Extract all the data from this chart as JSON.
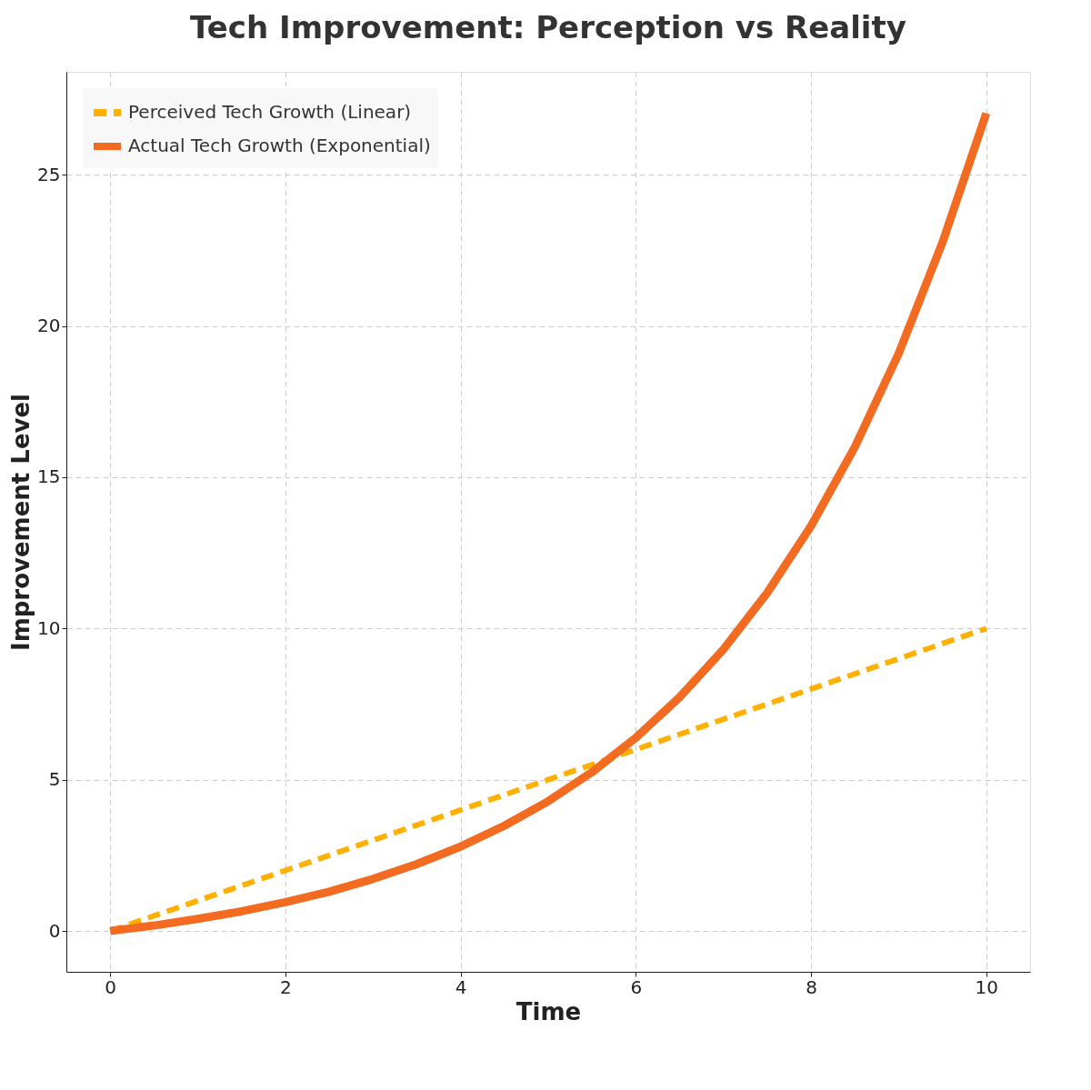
{
  "chart_data": {
    "type": "line",
    "title": "Tech Improvement: Perception vs Reality",
    "xlabel": "Time",
    "ylabel": "Improvement Level",
    "x": [
      0,
      0.5,
      1,
      1.5,
      2,
      2.5,
      3,
      3.5,
      4,
      4.5,
      5,
      5.5,
      6,
      6.5,
      7,
      7.5,
      8,
      8.5,
      9,
      9.5,
      10
    ],
    "series": [
      {
        "name": "Perceived Tech Growth (Linear)",
        "color": "#ffb000",
        "line_style": "dashed",
        "values": [
          0,
          0.5,
          1,
          1.5,
          2,
          2.5,
          3,
          3.5,
          4,
          4.5,
          5,
          5.5,
          6,
          6.5,
          7,
          7.5,
          8,
          8.5,
          9,
          9.5,
          10
        ]
      },
      {
        "name": "Actual Tech Growth (Exponential)",
        "color": "#f26b21",
        "line_style": "solid",
        "values": [
          0,
          0.18,
          0.4,
          0.65,
          0.95,
          1.3,
          1.72,
          2.21,
          2.79,
          3.48,
          4.29,
          5.25,
          6.39,
          7.73,
          9.31,
          11.18,
          13.39,
          16.0,
          19.09,
          22.76,
          27.03
        ]
      }
    ],
    "xlim": [
      -0.5,
      10.5
    ],
    "ylim": [
      -1.35,
      28.4
    ],
    "xticks": [
      0,
      2,
      4,
      6,
      8,
      10
    ],
    "yticks": [
      0,
      5,
      10,
      15,
      20,
      25
    ],
    "grid": true,
    "legend": "top left"
  }
}
